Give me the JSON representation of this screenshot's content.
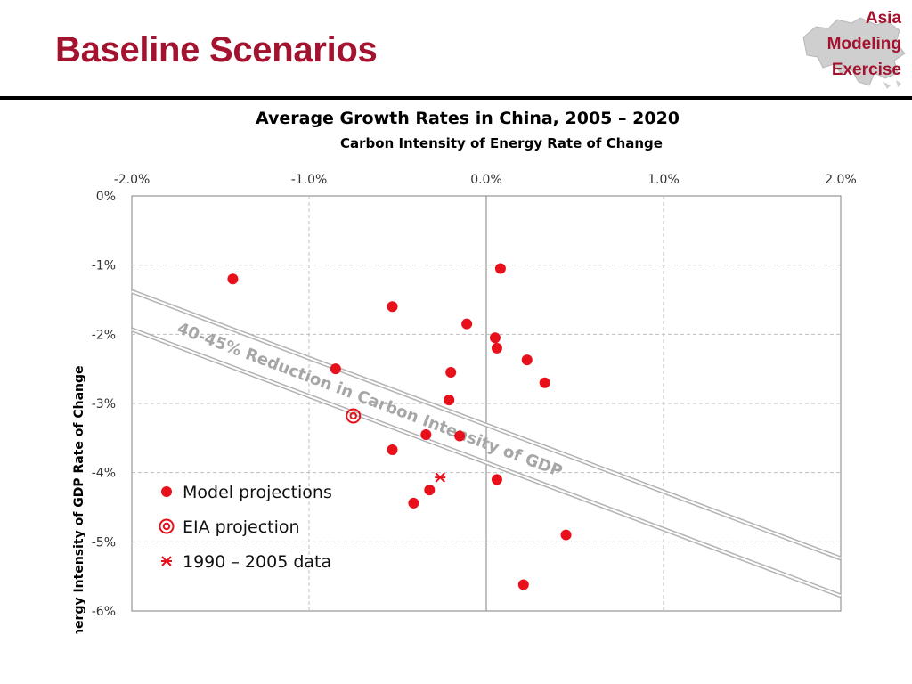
{
  "slide": {
    "title": "Baseline Scenarios"
  },
  "logo": {
    "lines": [
      "Asia",
      "Modeling",
      "Exercise"
    ]
  },
  "colors": {
    "accent": "#a3122e",
    "marker": "#e8101a",
    "band": "#b3b3b3",
    "grid": "#bfbfbf",
    "axis": "#808080"
  },
  "chart_data": {
    "type": "scatter",
    "title": "Average Growth Rates in China, 2005 – 2020",
    "xlabel": "Carbon Intensity of Energy Rate of Change",
    "ylabel": "Energy Intensity of GDP Rate of Change",
    "xlim": [
      -2.0,
      2.0
    ],
    "ylim": [
      -6.0,
      0.0
    ],
    "x_ticks": [
      -2.0,
      -1.0,
      0.0,
      1.0,
      2.0
    ],
    "x_tick_labels": [
      "-2.0%",
      "-1.0%",
      "0.0%",
      "1.0%",
      "2.0%"
    ],
    "y_ticks": [
      0,
      -1,
      -2,
      -3,
      -4,
      -5,
      -6
    ],
    "y_tick_labels": [
      "0%",
      "-1%",
      "-2%",
      "-3%",
      "-4%",
      "-5%",
      "-6%"
    ],
    "x_axis_position": "top",
    "grid": true,
    "legend_position": "bottom-left",
    "band_label": "40-45% Reduction in Carbon Intensity of GDP",
    "band_lines": [
      {
        "points": [
          [
            -2.0,
            -1.38
          ],
          [
            2.0,
            -5.24
          ]
        ]
      },
      {
        "points": [
          [
            -2.0,
            -1.93
          ],
          [
            2.0,
            -5.78
          ]
        ]
      }
    ],
    "series": [
      {
        "name": "Model projections",
        "marker": "dot",
        "points": [
          [
            -1.43,
            -1.2
          ],
          [
            0.08,
            -1.05
          ],
          [
            -0.53,
            -1.6
          ],
          [
            -0.11,
            -1.85
          ],
          [
            0.05,
            -2.05
          ],
          [
            0.06,
            -2.2
          ],
          [
            0.23,
            -2.37
          ],
          [
            0.33,
            -2.7
          ],
          [
            -0.85,
            -2.5
          ],
          [
            -0.2,
            -2.55
          ],
          [
            -0.21,
            -2.95
          ],
          [
            -0.34,
            -3.45
          ],
          [
            -0.15,
            -3.47
          ],
          [
            -0.53,
            -3.67
          ],
          [
            0.06,
            -4.1
          ],
          [
            -0.32,
            -4.25
          ],
          [
            -0.41,
            -4.44
          ],
          [
            0.45,
            -4.9
          ],
          [
            0.21,
            -5.62
          ]
        ]
      },
      {
        "name": "EIA projection",
        "marker": "ring",
        "points": [
          [
            -0.75,
            -3.18
          ]
        ]
      },
      {
        "name": "1990 – 2005 data",
        "marker": "star",
        "points": [
          [
            -0.26,
            -4.07
          ]
        ]
      }
    ]
  }
}
